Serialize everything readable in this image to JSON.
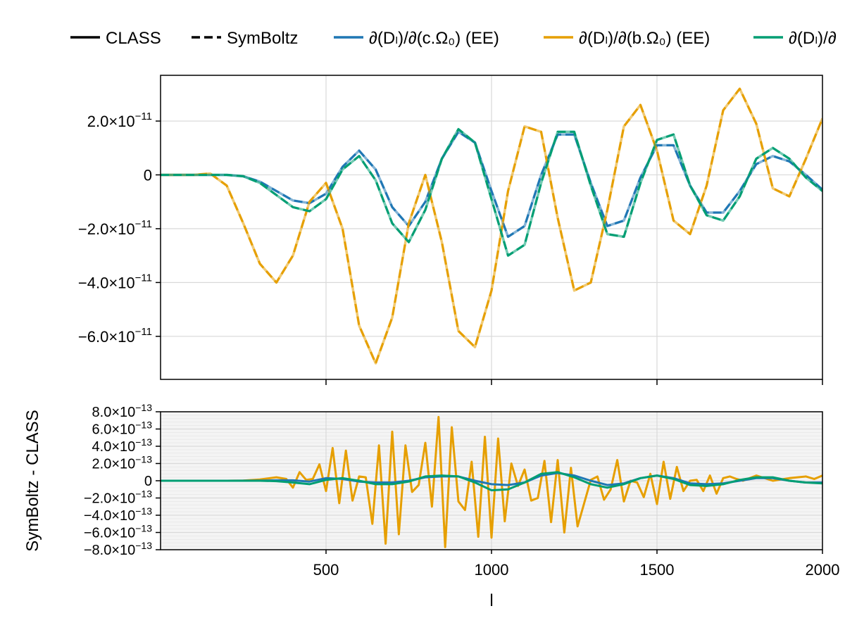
{
  "chart_data": [
    {
      "type": "line",
      "panel": "top",
      "title": "",
      "xlabel": "",
      "ylabel": "",
      "xlim": [
        0,
        2000
      ],
      "ylim": [
        -7.6e-11,
        3.7e-11
      ],
      "xticks": [
        500,
        1000,
        1500,
        2000
      ],
      "yticks": [
        {
          "value": 2e-11,
          "label": "2.0×10",
          "exp": "−11"
        },
        {
          "value": 0,
          "label": "0",
          "exp": ""
        },
        {
          "value": -2e-11,
          "label": "−2.0×10",
          "exp": "−11"
        },
        {
          "value": -4e-11,
          "label": "−4.0×10",
          "exp": "−11"
        },
        {
          "value": -6e-11,
          "label": "−6.0×10",
          "exp": "−11"
        }
      ],
      "grid": true,
      "series": [
        {
          "name": "∂(Dₗ)/∂(c.Ω₀) (EE)",
          "color": "#1f77b4",
          "x": [
            0,
            50,
            100,
            150,
            200,
            250,
            300,
            350,
            400,
            450,
            500,
            550,
            600,
            650,
            700,
            750,
            800,
            850,
            900,
            950,
            1000,
            1050,
            1100,
            1150,
            1200,
            1250,
            1300,
            1350,
            1400,
            1450,
            1500,
            1550,
            1600,
            1650,
            1700,
            1750,
            1800,
            1850,
            1900,
            1950,
            2000
          ],
          "y": [
            0,
            0,
            0,
            0,
            0,
            -5e-13,
            -2.5e-12,
            -6e-12,
            -9.5e-12,
            -1.05e-11,
            -7e-12,
            3e-12,
            9e-12,
            2e-12,
            -1.2e-11,
            -1.9e-11,
            -1e-11,
            6e-12,
            1.6e-11,
            1.2e-11,
            -6e-12,
            -2.3e-11,
            -1.9e-11,
            0.0,
            1.5e-11,
            1.5e-11,
            -3e-12,
            -1.9e-11,
            -1.7e-11,
            -1e-12,
            1.1e-11,
            1.1e-11,
            -4e-12,
            -1.4e-11,
            -1.4e-11,
            -6e-12,
            4e-12,
            7e-12,
            5e-12,
            0.0,
            -5.5e-12
          ]
        },
        {
          "name": "∂(Dₗ)/∂(b.Ω₀) (EE)",
          "color": "#e69f00",
          "x": [
            0,
            50,
            100,
            150,
            200,
            250,
            300,
            350,
            400,
            450,
            500,
            550,
            600,
            650,
            700,
            750,
            800,
            850,
            900,
            950,
            1000,
            1050,
            1100,
            1150,
            1200,
            1250,
            1300,
            1350,
            1400,
            1450,
            1500,
            1550,
            1600,
            1650,
            1700,
            1750,
            1800,
            1850,
            1900,
            1950,
            2000
          ],
          "y": [
            0,
            0,
            0,
            5e-13,
            -4e-12,
            -1.8e-11,
            -3.3e-11,
            -4e-11,
            -3e-11,
            -1e-11,
            -3e-12,
            -2e-11,
            -5.6e-11,
            -7e-11,
            -5.3e-11,
            -1.8e-11,
            0.0,
            -2.5e-11,
            -5.8e-11,
            -6.4e-11,
            -4.3e-11,
            -6e-12,
            1.8e-11,
            1.6e-11,
            -1.6e-11,
            -4.3e-11,
            -4e-11,
            -1.3e-11,
            1.8e-11,
            2.6e-11,
            9e-12,
            -1.7e-11,
            -2.2e-11,
            -4e-12,
            2.4e-11,
            3.2e-11,
            1.9e-11,
            -5e-12,
            -8e-12,
            6e-12,
            2.1e-11
          ]
        },
        {
          "name": "∂(Dₗ)/∂",
          "color": "#009e73",
          "x": [
            0,
            50,
            100,
            150,
            200,
            250,
            300,
            350,
            400,
            450,
            500,
            550,
            600,
            650,
            700,
            750,
            800,
            850,
            900,
            950,
            1000,
            1050,
            1100,
            1150,
            1200,
            1250,
            1300,
            1350,
            1400,
            1450,
            1500,
            1550,
            1600,
            1650,
            1700,
            1750,
            1800,
            1850,
            1900,
            1950,
            2000
          ],
          "y": [
            0,
            0,
            0,
            0,
            0,
            -5e-13,
            -3e-12,
            -7.5e-12,
            -1.2e-11,
            -1.35e-11,
            -9e-12,
            2e-12,
            7e-12,
            -2e-12,
            -1.8e-11,
            -2.5e-11,
            -1.3e-11,
            6e-12,
            1.7e-11,
            1.2e-11,
            -9e-12,
            -3e-11,
            -2.6e-11,
            -3e-12,
            1.6e-11,
            1.6e-11,
            -4e-12,
            -2.2e-11,
            -2.3e-11,
            -3e-12,
            1.3e-11,
            1.5e-11,
            -4e-12,
            -1.5e-11,
            -1.7e-11,
            -8e-12,
            6e-12,
            1e-11,
            6e-12,
            -1e-12,
            -6e-12
          ]
        }
      ]
    },
    {
      "type": "line",
      "panel": "bottom",
      "title": "",
      "xlabel": "l",
      "ylabel": "SymBoltz - CLASS",
      "xlim": [
        0,
        2000
      ],
      "ylim": [
        -8e-13,
        8e-13
      ],
      "xticks": [
        500,
        1000,
        1500,
        2000
      ],
      "yticks": [
        {
          "value": 8e-13,
          "label": "8.0×10",
          "exp": "−13"
        },
        {
          "value": 6e-13,
          "label": "6.0×10",
          "exp": "−13"
        },
        {
          "value": 4e-13,
          "label": "4.0×10",
          "exp": "−13"
        },
        {
          "value": 2e-13,
          "label": "2.0×10",
          "exp": "−13"
        },
        {
          "value": 0,
          "label": "0",
          "exp": ""
        },
        {
          "value": -2e-13,
          "label": "−2.0×10",
          "exp": "−13"
        },
        {
          "value": -4e-13,
          "label": "−4.0×10",
          "exp": "−13"
        },
        {
          "value": -6e-13,
          "label": "−6.0×10",
          "exp": "−13"
        },
        {
          "value": -8e-13,
          "label": "−8.0×10",
          "exp": "−13"
        }
      ],
      "grid": true,
      "series": [
        {
          "name": "∂(Dₗ)/∂(b.Ω₀) (EE)",
          "color": "#e69f00",
          "x": [
            0,
            50,
            100,
            150,
            200,
            250,
            300,
            350,
            380,
            400,
            420,
            440,
            460,
            480,
            500,
            520,
            540,
            560,
            580,
            600,
            620,
            640,
            660,
            680,
            700,
            720,
            740,
            760,
            780,
            800,
            820,
            840,
            860,
            880,
            900,
            920,
            940,
            960,
            980,
            1000,
            1020,
            1040,
            1060,
            1080,
            1100,
            1120,
            1140,
            1160,
            1180,
            1200,
            1220,
            1240,
            1260,
            1280,
            1300,
            1320,
            1340,
            1360,
            1380,
            1400,
            1420,
            1440,
            1460,
            1480,
            1500,
            1520,
            1540,
            1560,
            1580,
            1600,
            1620,
            1640,
            1660,
            1680,
            1700,
            1720,
            1740,
            1760,
            1780,
            1800,
            1850,
            1900,
            1950,
            1975,
            2000
          ],
          "y": [
            0,
            0,
            0,
            0,
            0,
            2e-15,
            1.5e-14,
            4e-14,
            2e-14,
            -8e-14,
            1e-13,
            1e-14,
            2e-14,
            1.9e-13,
            -1.2e-13,
            3.8e-13,
            -2.6e-13,
            3.5e-13,
            -2.3e-13,
            5e-14,
            4e-14,
            -5e-13,
            4.1e-13,
            -7.3e-13,
            5.7e-13,
            -6.2e-13,
            4.1e-13,
            -1.3e-13,
            -5e-14,
            4.4e-13,
            -3e-13,
            7.4e-13,
            -7.7e-13,
            6.2e-13,
            -2.4e-13,
            -3.4e-13,
            2.2e-13,
            -6.5e-13,
            5.1e-13,
            -6.6e-13,
            4.9e-13,
            -4.7e-13,
            2e-13,
            -6e-14,
            1.3e-13,
            -2.3e-13,
            -2e-13,
            2.3e-13,
            -4.8e-13,
            2.4e-13,
            -6e-13,
            1.5e-13,
            -5.3e-13,
            -2.6e-13,
            1e-14,
            5e-14,
            -2.2e-13,
            -1e-13,
            2.4e-13,
            -2.4e-13,
            0.0,
            -2e-14,
            -1.9e-13,
            8e-14,
            -2.7e-13,
            2.2e-13,
            -2.1e-13,
            1.6e-13,
            -1.2e-13,
            0.0,
            1e-14,
            -1.2e-13,
            6e-14,
            -1.5e-13,
            3e-14,
            5e-14,
            2e-14,
            0.0,
            3e-14,
            6e-14,
            0.0,
            3e-14,
            5e-14,
            2e-14,
            6e-14
          ]
        },
        {
          "name": "∂(Dₗ)/∂(c.Ω₀) (EE)",
          "color": "#1f77b4",
          "x": [
            0,
            100,
            200,
            300,
            350,
            400,
            450,
            500,
            550,
            600,
            650,
            700,
            750,
            800,
            850,
            900,
            950,
            1000,
            1050,
            1100,
            1150,
            1200,
            1250,
            1300,
            1350,
            1400,
            1450,
            1500,
            1550,
            1600,
            1650,
            1700,
            1750,
            1800,
            1850,
            1900,
            1950,
            2000
          ],
          "y": [
            0,
            0,
            0,
            2e-15,
            5e-15,
            5e-15,
            -1e-14,
            3e-14,
            2e-14,
            -1e-14,
            -2e-14,
            -2e-14,
            0.0,
            4e-14,
            5e-14,
            5e-14,
            0.0,
            -4e-14,
            -5e-14,
            -2e-14,
            6e-14,
            9e-14,
            6e-14,
            0.0,
            -5e-14,
            -3e-14,
            3e-14,
            6e-14,
            3e-14,
            -3e-14,
            -4e-14,
            -3e-14,
            0.0,
            3e-14,
            3e-14,
            0.0,
            -2e-14,
            -2e-14
          ]
        },
        {
          "name": "∂(Dₗ)/∂",
          "color": "#009e73",
          "x": [
            0,
            100,
            200,
            300,
            350,
            400,
            450,
            500,
            550,
            600,
            650,
            700,
            750,
            800,
            850,
            900,
            950,
            1000,
            1050,
            1100,
            1150,
            1200,
            1250,
            1300,
            1350,
            1400,
            1450,
            1500,
            1550,
            1600,
            1650,
            1700,
            1750,
            1800,
            1850,
            1900,
            1950,
            2000
          ],
          "y": [
            0,
            0,
            0,
            0,
            -5e-15,
            -2e-14,
            -4e-14,
            1e-14,
            3e-14,
            0.0,
            -4e-14,
            -4e-14,
            -1e-14,
            5e-14,
            6e-14,
            5e-14,
            -2e-14,
            -1.1e-13,
            -1e-13,
            -2e-14,
            8e-14,
            1e-13,
            4e-14,
            -4e-14,
            -8e-14,
            -4e-14,
            3e-14,
            6e-14,
            2e-14,
            -5e-14,
            -6e-14,
            -4e-14,
            1e-14,
            4e-14,
            4e-14,
            0.0,
            -2e-14,
            -3e-14
          ]
        }
      ]
    }
  ],
  "legend": {
    "placement": "top",
    "items": [
      {
        "label": "CLASS",
        "style": "solid",
        "color": "#000000"
      },
      {
        "label": "SymBoltz",
        "style": "dashed",
        "color": "#000000"
      },
      {
        "label": "∂(Dₗ)/∂(c.Ω₀) (EE)",
        "style": "solid",
        "color": "#1f77b4"
      },
      {
        "label": "∂(Dₗ)/∂(b.Ω₀) (EE)",
        "style": "solid",
        "color": "#e69f00"
      },
      {
        "label": "∂(Dₗ)/∂",
        "style": "solid",
        "color": "#009e73"
      }
    ]
  }
}
